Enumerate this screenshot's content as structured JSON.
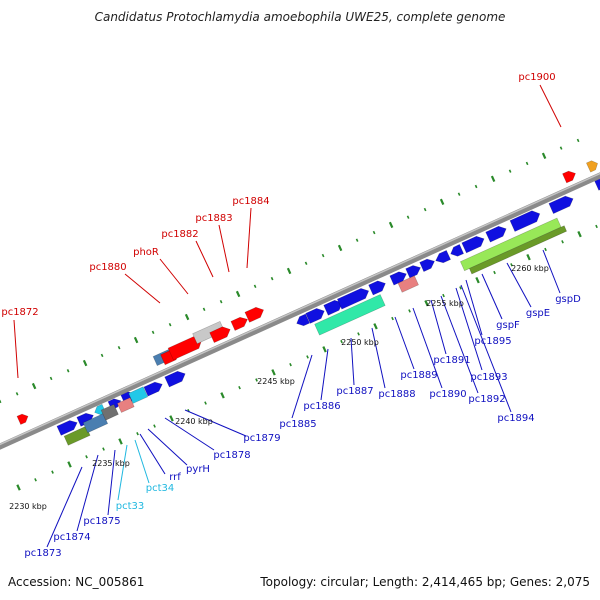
{
  "title": "Candidatus Protochlamydia amoebophila UWE25, complete genome",
  "footer": {
    "accession": "Accession: NC_005861",
    "topology": "Topology: circular; Length: 2,414,465 bp; Genes: 2,075"
  },
  "colors": {
    "blue": "#1010e0",
    "red": "#ff0000",
    "cyan": "#22c8e8",
    "teal": "#30e8a8",
    "olive": "#6a9a28",
    "steel": "#4a7eb0",
    "lime": "#98e858",
    "pink": "#e88080",
    "gray": "#c8c8c8",
    "dark_gray": "#707070",
    "orange": "#f0a020",
    "label_blue": "#1010c0",
    "label_red": "#d00000",
    "label_cyan": "#20b8e0",
    "tick": "#2a8a2a",
    "genome_line": "#888888"
  },
  "scale_labels": [
    "2230 kbp",
    "2235 kbp",
    "2240 kbp",
    "2245 kbp",
    "2250 kbp",
    "2255 kbp",
    "2260 kbp"
  ],
  "top_labels": [
    "pc1872",
    "pc1880",
    "phoR",
    "pc1882",
    "pc1883",
    "pc1884",
    "pc1900"
  ],
  "bottom_labels": [
    "pc1873",
    "pc1874",
    "pc1875",
    "pct33",
    "pct34",
    "rrf",
    "pyrH",
    "pc1878",
    "pc1879",
    "pc1885",
    "pc1886",
    "pc1887",
    "pc1888",
    "pc1889",
    "pc1890",
    "pc1891",
    "pc1892",
    "pc1893",
    "pc1894",
    "pc1895",
    "gspF",
    "gspE",
    "gspD"
  ]
}
